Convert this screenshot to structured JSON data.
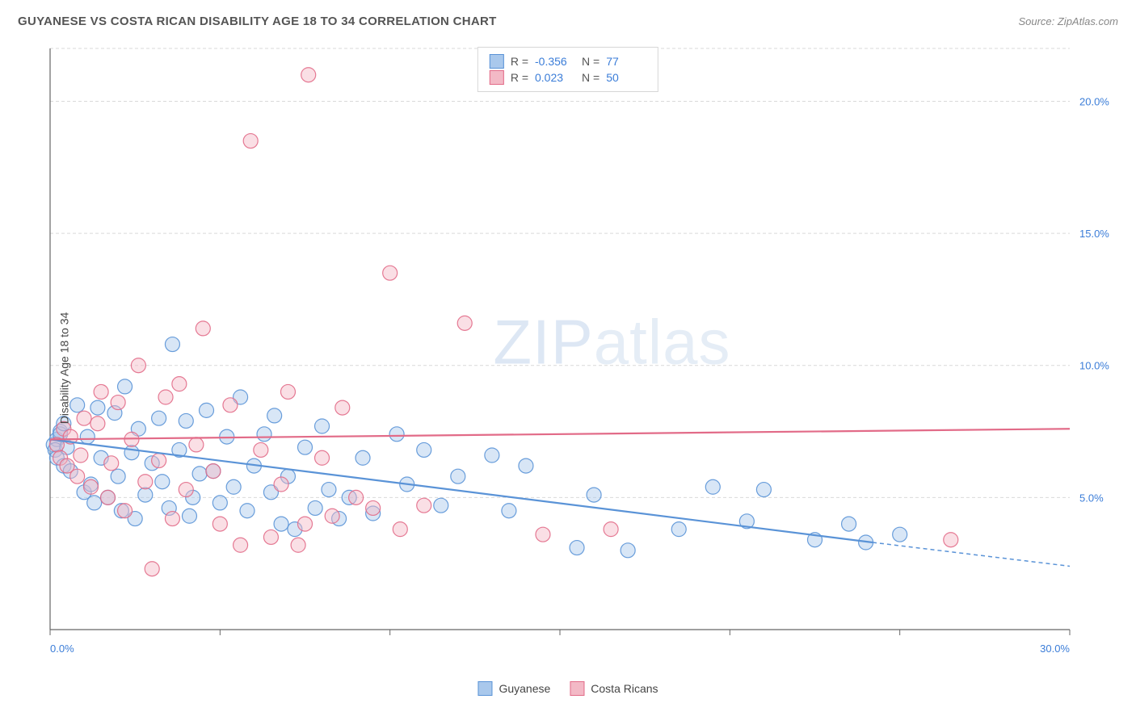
{
  "title": "GUYANESE VS COSTA RICAN DISABILITY AGE 18 TO 34 CORRELATION CHART",
  "source": "Source: ZipAtlas.com",
  "watermark_bold": "ZIP",
  "watermark_light": "atlas",
  "y_axis_label": "Disability Age 18 to 34",
  "chart": {
    "type": "scatter",
    "xlim": [
      0,
      30
    ],
    "ylim": [
      0,
      22
    ],
    "x_ticks": [
      0,
      5,
      10,
      15,
      20,
      25,
      30
    ],
    "x_tick_labels": [
      "0.0%",
      "",
      "",
      "",
      "",
      "",
      "30.0%"
    ],
    "y_ticks": [
      5,
      10,
      15,
      20
    ],
    "y_tick_labels": [
      "5.0%",
      "10.0%",
      "15.0%",
      "20.0%"
    ],
    "grid_color": "#d9d9d9",
    "axis_color": "#666666",
    "background": "#ffffff",
    "tick_label_color": "#3b7dd8",
    "marker_radius": 9,
    "marker_opacity": 0.45,
    "marker_stroke_opacity": 0.9,
    "line_width": 2.2,
    "series": [
      {
        "name": "Guyanese",
        "fill": "#a9c8ec",
        "stroke": "#5a93d7",
        "r_value": "-0.356",
        "n_value": "77",
        "trend": {
          "x1": 0,
          "y1": 7.2,
          "x2": 24.2,
          "y2": 3.3,
          "dash_to_x": 30,
          "dash_to_y": 2.4
        },
        "points": [
          [
            0.1,
            7.0
          ],
          [
            0.2,
            7.2
          ],
          [
            0.15,
            6.8
          ],
          [
            0.3,
            7.5
          ],
          [
            0.2,
            6.5
          ],
          [
            0.4,
            6.2
          ],
          [
            0.3,
            7.4
          ],
          [
            0.5,
            6.9
          ],
          [
            0.4,
            7.8
          ],
          [
            0.6,
            6.0
          ],
          [
            0.8,
            8.5
          ],
          [
            1.0,
            5.2
          ],
          [
            1.2,
            5.5
          ],
          [
            1.1,
            7.3
          ],
          [
            1.4,
            8.4
          ],
          [
            1.5,
            6.5
          ],
          [
            1.3,
            4.8
          ],
          [
            1.7,
            5.0
          ],
          [
            1.9,
            8.2
          ],
          [
            2.0,
            5.8
          ],
          [
            2.2,
            9.2
          ],
          [
            2.1,
            4.5
          ],
          [
            2.4,
            6.7
          ],
          [
            2.6,
            7.6
          ],
          [
            2.8,
            5.1
          ],
          [
            2.5,
            4.2
          ],
          [
            3.0,
            6.3
          ],
          [
            3.2,
            8.0
          ],
          [
            3.3,
            5.6
          ],
          [
            3.5,
            4.6
          ],
          [
            3.6,
            10.8
          ],
          [
            3.8,
            6.8
          ],
          [
            4.0,
            7.9
          ],
          [
            4.2,
            5.0
          ],
          [
            4.1,
            4.3
          ],
          [
            4.4,
            5.9
          ],
          [
            4.6,
            8.3
          ],
          [
            4.8,
            6.0
          ],
          [
            5.0,
            4.8
          ],
          [
            5.2,
            7.3
          ],
          [
            5.4,
            5.4
          ],
          [
            5.6,
            8.8
          ],
          [
            5.8,
            4.5
          ],
          [
            6.0,
            6.2
          ],
          [
            6.3,
            7.4
          ],
          [
            6.5,
            5.2
          ],
          [
            6.8,
            4.0
          ],
          [
            6.6,
            8.1
          ],
          [
            7.0,
            5.8
          ],
          [
            7.2,
            3.8
          ],
          [
            7.5,
            6.9
          ],
          [
            7.8,
            4.6
          ],
          [
            8.0,
            7.7
          ],
          [
            8.2,
            5.3
          ],
          [
            8.5,
            4.2
          ],
          [
            8.8,
            5.0
          ],
          [
            9.2,
            6.5
          ],
          [
            9.5,
            4.4
          ],
          [
            10.2,
            7.4
          ],
          [
            10.5,
            5.5
          ],
          [
            11.0,
            6.8
          ],
          [
            11.5,
            4.7
          ],
          [
            12.0,
            5.8
          ],
          [
            13.0,
            6.6
          ],
          [
            13.5,
            4.5
          ],
          [
            14.0,
            6.2
          ],
          [
            15.5,
            3.1
          ],
          [
            16.0,
            5.1
          ],
          [
            17.0,
            3.0
          ],
          [
            18.5,
            3.8
          ],
          [
            19.5,
            5.4
          ],
          [
            20.5,
            4.1
          ],
          [
            21.0,
            5.3
          ],
          [
            22.5,
            3.4
          ],
          [
            23.5,
            4.0
          ],
          [
            24.0,
            3.3
          ],
          [
            25.0,
            3.6
          ]
        ]
      },
      {
        "name": "Costa Ricans",
        "fill": "#f3b9c6",
        "stroke": "#e26b88",
        "r_value": "0.023",
        "n_value": "50",
        "trend": {
          "x1": 0,
          "y1": 7.2,
          "x2": 30,
          "y2": 7.6
        },
        "points": [
          [
            0.2,
            7.0
          ],
          [
            0.3,
            6.5
          ],
          [
            0.4,
            7.6
          ],
          [
            0.5,
            6.2
          ],
          [
            0.6,
            7.3
          ],
          [
            0.8,
            5.8
          ],
          [
            1.0,
            8.0
          ],
          [
            0.9,
            6.6
          ],
          [
            1.2,
            5.4
          ],
          [
            1.4,
            7.8
          ],
          [
            1.5,
            9.0
          ],
          [
            1.7,
            5.0
          ],
          [
            1.8,
            6.3
          ],
          [
            2.0,
            8.6
          ],
          [
            2.2,
            4.5
          ],
          [
            2.4,
            7.2
          ],
          [
            2.6,
            10.0
          ],
          [
            2.8,
            5.6
          ],
          [
            3.0,
            2.3
          ],
          [
            3.2,
            6.4
          ],
          [
            3.4,
            8.8
          ],
          [
            3.6,
            4.2
          ],
          [
            3.8,
            9.3
          ],
          [
            4.0,
            5.3
          ],
          [
            4.3,
            7.0
          ],
          [
            4.5,
            11.4
          ],
          [
            4.8,
            6.0
          ],
          [
            5.0,
            4.0
          ],
          [
            5.3,
            8.5
          ],
          [
            5.6,
            3.2
          ],
          [
            5.9,
            18.5
          ],
          [
            6.2,
            6.8
          ],
          [
            6.5,
            3.5
          ],
          [
            6.8,
            5.5
          ],
          [
            7.0,
            9.0
          ],
          [
            7.3,
            3.2
          ],
          [
            7.6,
            21.0
          ],
          [
            7.5,
            4.0
          ],
          [
            8.0,
            6.5
          ],
          [
            8.3,
            4.3
          ],
          [
            8.6,
            8.4
          ],
          [
            9.0,
            5.0
          ],
          [
            9.5,
            4.6
          ],
          [
            10.0,
            13.5
          ],
          [
            10.3,
            3.8
          ],
          [
            11.0,
            4.7
          ],
          [
            12.2,
            11.6
          ],
          [
            14.5,
            3.6
          ],
          [
            16.5,
            3.8
          ],
          [
            26.5,
            3.4
          ]
        ]
      }
    ]
  },
  "legend_top": {
    "r_label": "R =",
    "n_label": "N ="
  },
  "legend_bottom": {
    "series1": "Guyanese",
    "series2": "Costa Ricans"
  }
}
